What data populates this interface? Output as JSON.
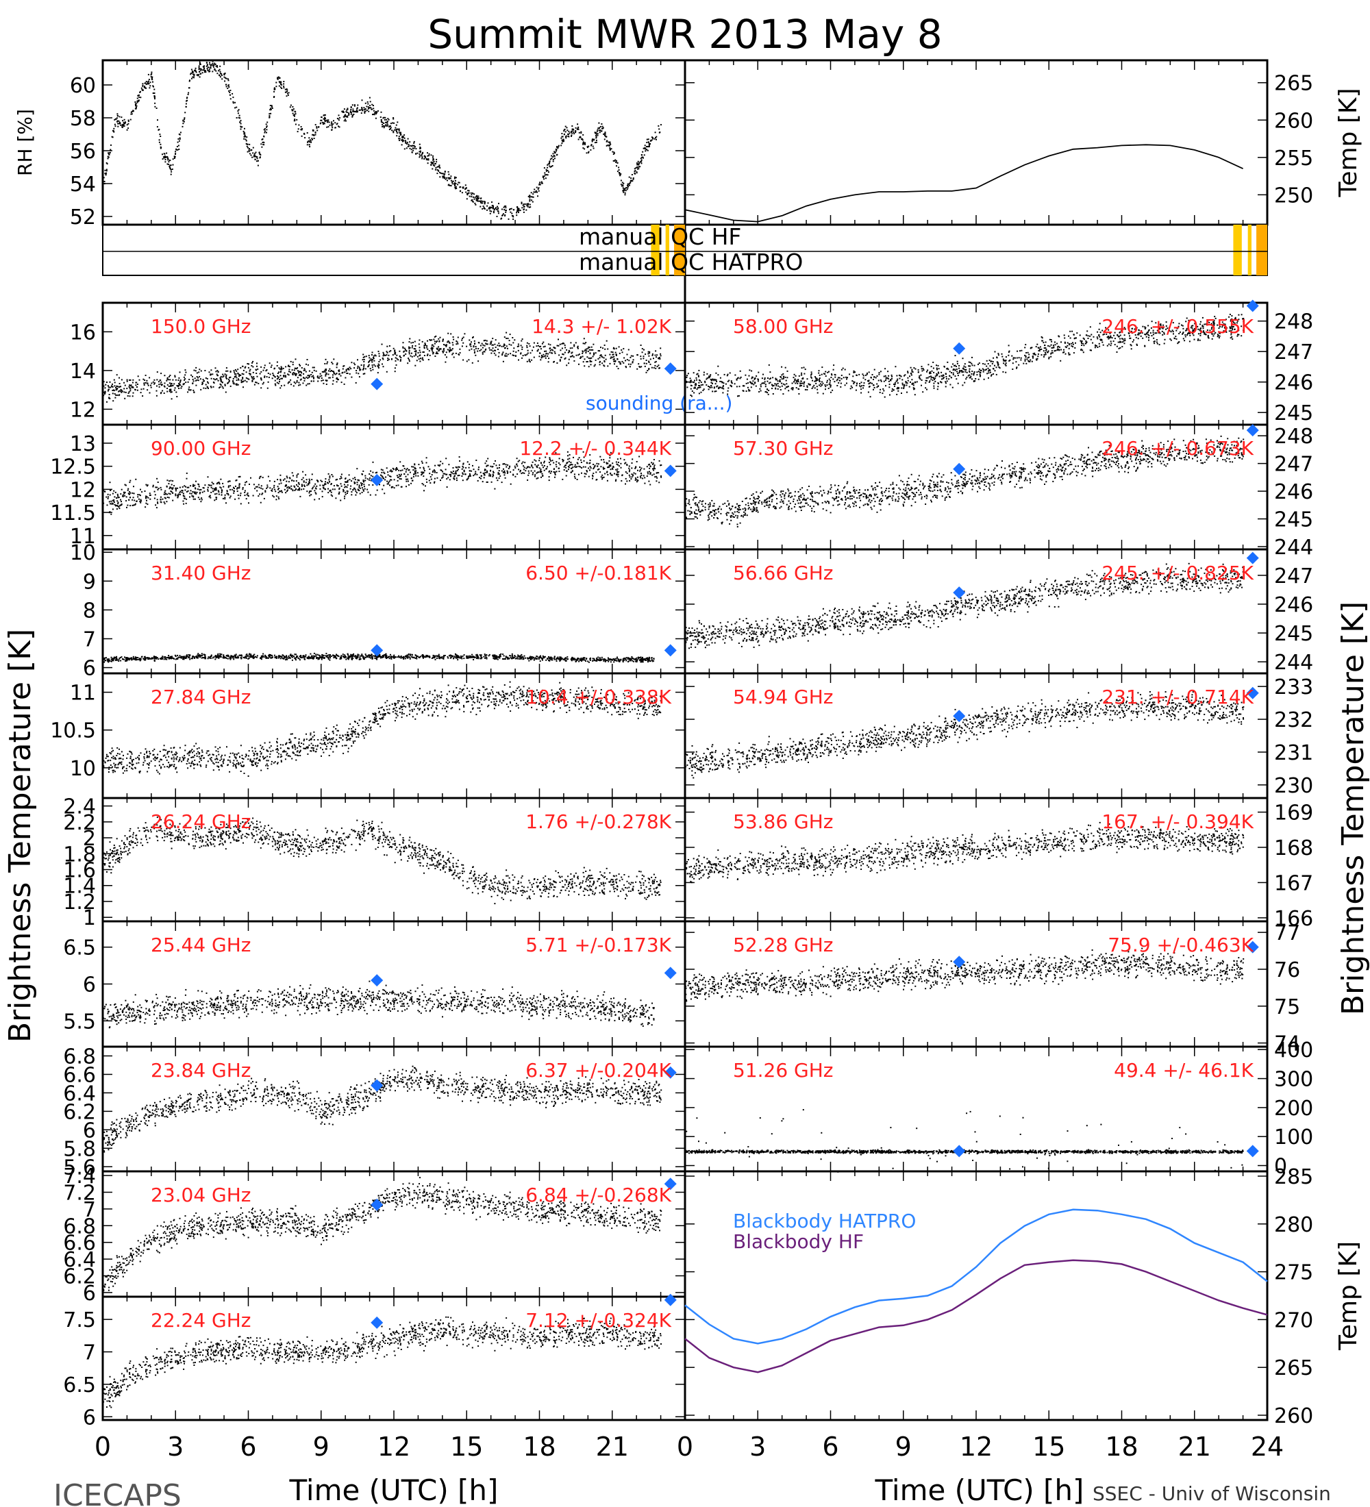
{
  "title": "Summit MWR 2013 May  8",
  "footer": {
    "left": "ICECAPS",
    "right": "SSEC - Univ of Wisconsin"
  },
  "xaxis": {
    "label": "Time (UTC) [h]",
    "ticks": [
      0,
      3,
      6,
      9,
      12,
      15,
      18,
      21,
      24
    ],
    "range": [
      0,
      24
    ]
  },
  "side_labels": {
    "left": "Brightness Temperature [K]",
    "right": "Brightness Temperature [K]"
  },
  "colors": {
    "text_red": "#ff2020",
    "sounding_blue": "#1a6fff",
    "bb_hatpro": "#2f86ff",
    "bb_hf": "#6a1f7a",
    "qc_orange": "#ffaa00",
    "qc_yellow": "#ffcc00"
  },
  "qc": {
    "label_hf": "manual QC HF",
    "label_hatpro": "manual QC HATPRO"
  },
  "chart_data": [
    {
      "id": "rh",
      "type": "scatter",
      "ylabel": "RH [%]",
      "ylim": [
        51.5,
        61.5
      ],
      "yticks": [
        52,
        54,
        56,
        58,
        60
      ],
      "x": [
        0,
        0.5,
        1,
        1.5,
        2,
        2.4,
        2.8,
        3.2,
        3.6,
        4,
        4.5,
        5,
        5.5,
        6,
        6.4,
        6.8,
        7.2,
        7.6,
        8,
        8.5,
        9,
        9.5,
        10,
        10.5,
        11,
        11.5,
        12,
        12.5,
        13,
        13.5,
        14,
        14.5,
        15,
        15.5,
        16,
        16.5,
        17,
        17.5,
        18,
        18.5,
        19,
        19.5,
        20,
        20.5,
        21,
        21.5,
        22,
        22.5,
        23
      ],
      "values": [
        54,
        58,
        57.5,
        59.5,
        60.5,
        56,
        55,
        57,
        60.5,
        61,
        61.2,
        60.5,
        58.5,
        56,
        55.5,
        58,
        60.5,
        59.5,
        57.5,
        56.5,
        58,
        57.5,
        58.3,
        58.5,
        58.8,
        57.8,
        57.5,
        56.5,
        56,
        55.5,
        54.5,
        54,
        53.5,
        53,
        52.5,
        52.3,
        52.3,
        52.8,
        54,
        55.5,
        57,
        57.5,
        56,
        57.5,
        56,
        53.5,
        55,
        56.5,
        57.5
      ]
    },
    {
      "id": "tair",
      "type": "line",
      "ylabel": "Temp [K]",
      "ylim": [
        246,
        268
      ],
      "yticks": [
        250,
        255,
        260,
        265
      ],
      "x": [
        0,
        1,
        2,
        3,
        4,
        5,
        6,
        7,
        8,
        9,
        10,
        11,
        12,
        13,
        14,
        15,
        16,
        17,
        18,
        19,
        20,
        21,
        22,
        23
      ],
      "values": [
        248,
        247.3,
        246.6,
        246.4,
        247.2,
        248.5,
        249.4,
        250,
        250.4,
        250.4,
        250.5,
        250.5,
        250.9,
        252.5,
        254,
        255.2,
        256.1,
        256.3,
        256.6,
        256.7,
        256.6,
        256,
        255,
        253.5
      ]
    },
    {
      "id": "150.0",
      "type": "scatter",
      "freq": "150.0 GHz",
      "stat": "14.3 +/- 1.02K",
      "ylim": [
        11.2,
        17.5
      ],
      "yticks": [
        12,
        14,
        16
      ],
      "x": [
        0,
        2,
        4,
        6,
        8,
        10,
        12,
        14,
        16,
        18,
        20,
        22,
        23
      ],
      "values": [
        13,
        13.2,
        13.5,
        13.8,
        13.8,
        14,
        14.8,
        15.3,
        15.2,
        15.1,
        14.9,
        14.6,
        14.6
      ],
      "sounding": [
        {
          "x": 11.3,
          "y": 13.3
        },
        {
          "x": 23.4,
          "y": 14.1
        }
      ],
      "annotation": "sounding (ra...)"
    },
    {
      "id": "58.00",
      "type": "scatter",
      "freq": "58.00 GHz",
      "stat": "246. +/- 0.555K",
      "ylim": [
        244.6,
        248.6
      ],
      "yticks": [
        245,
        246,
        247,
        248
      ],
      "x": [
        0,
        2,
        4,
        6,
        8,
        10,
        11,
        12,
        14,
        16,
        18,
        20,
        22,
        23
      ],
      "values": [
        246,
        246,
        246,
        246.1,
        246,
        246.2,
        246.3,
        246.4,
        246.9,
        247.3,
        247.5,
        247.7,
        247.8,
        247.9
      ],
      "sounding": [
        {
          "x": 11.3,
          "y": 247.1
        },
        {
          "x": 23.4,
          "y": 248.5
        }
      ]
    },
    {
      "id": "90.00",
      "type": "scatter",
      "freq": "90.00 GHz",
      "stat": "12.2 +/- 0.344K",
      "ylim": [
        10.7,
        13.4
      ],
      "yticks": [
        11.0,
        11.5,
        12.0,
        12.5,
        13.0
      ],
      "x": [
        0,
        2,
        4,
        6,
        8,
        10,
        12,
        14,
        16,
        18,
        20,
        22,
        23
      ],
      "values": [
        11.8,
        11.9,
        12,
        12,
        12.1,
        12.1,
        12.3,
        12.4,
        12.4,
        12.5,
        12.5,
        12.4,
        12.4
      ],
      "sounding": [
        {
          "x": 11.3,
          "y": 12.2
        },
        {
          "x": 23.4,
          "y": 12.4
        }
      ]
    },
    {
      "id": "57.30",
      "type": "scatter",
      "freq": "57.30 GHz",
      "stat": "246. +/- 0.673K",
      "ylim": [
        243.9,
        248.4
      ],
      "yticks": [
        244,
        245,
        246,
        247,
        248
      ],
      "x": [
        0,
        2,
        3,
        4,
        6,
        8,
        10,
        12,
        14,
        16,
        18,
        20,
        22,
        23
      ],
      "values": [
        245.5,
        245.2,
        245.6,
        245.7,
        245.8,
        245.9,
        246.1,
        246.4,
        246.7,
        247,
        247.2,
        247.4,
        247.5,
        247.5
      ],
      "sounding": [
        {
          "x": 11.3,
          "y": 246.8
        },
        {
          "x": 23.4,
          "y": 248.2
        }
      ]
    },
    {
      "id": "31.40",
      "type": "scatter",
      "freq": "31.40 GHz",
      "stat": "6.50 +/-0.181K",
      "ylim": [
        5.8,
        10.1
      ],
      "yticks": [
        6,
        7,
        8,
        9,
        10
      ],
      "x": [
        0,
        4,
        8,
        12,
        16,
        20,
        22.7
      ],
      "values": [
        6.3,
        6.4,
        6.4,
        6.4,
        6.4,
        6.3,
        6.3
      ],
      "sounding": [
        {
          "x": 11.3,
          "y": 6.6
        },
        {
          "x": 23.4,
          "y": 6.6
        }
      ]
    },
    {
      "id": "56.66",
      "type": "scatter",
      "freq": "56.66 GHz",
      "stat": "245. +/- 0.825K",
      "ylim": [
        243.6,
        247.9
      ],
      "yticks": [
        244,
        245,
        246,
        247
      ],
      "x": [
        0,
        2,
        4,
        6,
        8,
        10,
        12,
        14,
        16,
        18,
        20,
        22,
        23
      ],
      "values": [
        244.9,
        245,
        245.1,
        245.4,
        245.5,
        245.7,
        246,
        246.3,
        246.6,
        246.8,
        246.9,
        246.9,
        246.9
      ],
      "sounding": [
        {
          "x": 11.3,
          "y": 246.4
        },
        {
          "x": 23.4,
          "y": 247.6
        }
      ]
    },
    {
      "id": "27.84",
      "type": "scatter",
      "freq": "27.84 GHz",
      "stat": "10.4 +/-0.338K",
      "ylim": [
        9.6,
        11.25
      ],
      "yticks": [
        10.0,
        10.5,
        11.0
      ],
      "x": [
        0,
        2,
        4,
        6,
        8,
        10,
        11,
        12,
        13,
        14,
        16,
        18,
        20,
        22,
        23
      ],
      "values": [
        10.1,
        10.1,
        10.15,
        10.1,
        10.3,
        10.4,
        10.6,
        10.8,
        10.85,
        10.9,
        10.95,
        10.95,
        10.9,
        10.85,
        10.8
      ],
      "sounding": []
    },
    {
      "id": "54.94",
      "type": "scatter",
      "freq": "54.94 GHz",
      "stat": "231. +/- 0.714K",
      "ylim": [
        229.6,
        233.4
      ],
      "yticks": [
        230,
        231,
        232,
        233
      ],
      "x": [
        0,
        2,
        4,
        6,
        8,
        10,
        12,
        14,
        16,
        18,
        20,
        22,
        23
      ],
      "values": [
        230.7,
        230.8,
        231,
        231.2,
        231.4,
        231.6,
        231.9,
        232.1,
        232.3,
        232.4,
        232.4,
        232.3,
        232.2
      ],
      "sounding": [
        {
          "x": 11.3,
          "y": 232.1
        },
        {
          "x": 23.4,
          "y": 232.8
        }
      ]
    },
    {
      "id": "26.24",
      "type": "scatter",
      "freq": "26.24 GHz",
      "stat": "1.76 +/-0.278K",
      "ylim": [
        0.95,
        2.5
      ],
      "yticks": [
        1.0,
        1.2,
        1.4,
        1.6,
        1.8,
        2.0,
        2.2,
        2.4
      ],
      "x": [
        0,
        1,
        2,
        4,
        6,
        8,
        10,
        11,
        12,
        13,
        14,
        15,
        16,
        18,
        20,
        22,
        23
      ],
      "values": [
        1.7,
        1.9,
        2.1,
        2.0,
        2.1,
        1.9,
        2.0,
        2.1,
        1.9,
        1.8,
        1.7,
        1.55,
        1.4,
        1.4,
        1.45,
        1.4,
        1.4
      ],
      "sounding": []
    },
    {
      "id": "53.86",
      "type": "scatter",
      "freq": "53.86 GHz",
      "stat": "167. +/- 0.394K",
      "ylim": [
        165.9,
        169.4
      ],
      "yticks": [
        166,
        167,
        168,
        169
      ],
      "x": [
        0,
        2,
        4,
        6,
        8,
        10,
        12,
        14,
        16,
        18,
        20,
        22,
        23
      ],
      "values": [
        167.4,
        167.5,
        167.6,
        167.6,
        167.8,
        167.9,
        168,
        168.1,
        168.2,
        168.3,
        168.3,
        168.2,
        168.2
      ],
      "sounding": []
    },
    {
      "id": "25.44",
      "type": "scatter",
      "freq": "25.44 GHz",
      "stat": "5.71 +/-0.173K",
      "ylim": [
        5.15,
        6.85
      ],
      "yticks": [
        5.5,
        6.0,
        6.5
      ],
      "x": [
        0,
        4,
        8,
        12,
        16,
        20,
        22.7
      ],
      "values": [
        5.6,
        5.7,
        5.8,
        5.8,
        5.75,
        5.7,
        5.6
      ],
      "sounding": [
        {
          "x": 11.3,
          "y": 6.05
        },
        {
          "x": 23.4,
          "y": 6.15
        }
      ]
    },
    {
      "id": "52.28",
      "type": "scatter",
      "freq": "52.28 GHz",
      "stat": "75.9 +/-0.463K",
      "ylim": [
        73.9,
        77.3
      ],
      "yticks": [
        74,
        75,
        76,
        77
      ],
      "x": [
        0,
        2,
        4,
        6,
        8,
        10,
        12,
        14,
        16,
        18,
        20,
        22,
        23
      ],
      "values": [
        75.5,
        75.6,
        75.6,
        75.7,
        75.8,
        75.9,
        75.9,
        76,
        76.1,
        76.2,
        76.1,
        76,
        76
      ],
      "sounding": [
        {
          "x": 11.3,
          "y": 76.2
        },
        {
          "x": 23.4,
          "y": 76.6
        }
      ]
    },
    {
      "id": "23.84",
      "type": "scatter",
      "freq": "23.84 GHz",
      "stat": "6.37 +/-0.204K",
      "ylim": [
        5.55,
        6.9
      ],
      "yticks": [
        5.6,
        5.8,
        6.0,
        6.2,
        6.4,
        6.6,
        6.8
      ],
      "x": [
        0,
        2,
        4,
        6,
        8,
        9,
        10,
        11,
        12,
        13,
        14,
        16,
        18,
        20,
        22,
        23
      ],
      "values": [
        5.9,
        6.2,
        6.3,
        6.4,
        6.4,
        6.2,
        6.3,
        6.4,
        6.55,
        6.55,
        6.5,
        6.45,
        6.4,
        6.45,
        6.4,
        6.4
      ],
      "sounding": [
        {
          "x": 11.3,
          "y": 6.48
        },
        {
          "x": 23.4,
          "y": 6.62
        }
      ]
    },
    {
      "id": "51.26",
      "type": "scatter",
      "freq": "51.26 GHz",
      "stat": "49.4 +/- 46.1K",
      "ylim": [
        -20,
        410
      ],
      "yticks": [
        0,
        100,
        200,
        300,
        400
      ],
      "x": [
        0,
        4,
        8,
        12,
        16,
        20,
        23
      ],
      "values": [
        50,
        50,
        50,
        50,
        50,
        50,
        50
      ],
      "sounding": [
        {
          "x": 11.3,
          "y": 50
        },
        {
          "x": 23.4,
          "y": 50
        }
      ]
    },
    {
      "id": "23.04",
      "type": "scatter",
      "freq": "23.04 GHz",
      "stat": "6.84 +/-0.268K",
      "ylim": [
        5.95,
        7.45
      ],
      "yticks": [
        6.0,
        6.2,
        6.4,
        6.6,
        6.8,
        7.0,
        7.2,
        7.4
      ],
      "x": [
        0,
        1,
        2,
        3,
        4,
        6,
        8,
        9,
        10,
        11,
        12,
        13,
        14,
        16,
        18,
        20,
        22,
        23
      ],
      "values": [
        6.1,
        6.4,
        6.6,
        6.75,
        6.8,
        6.85,
        6.85,
        6.75,
        6.9,
        7.0,
        7.15,
        7.2,
        7.15,
        7.05,
        7.0,
        6.95,
        6.9,
        6.85
      ],
      "sounding": [
        {
          "x": 11.3,
          "y": 7.05
        },
        {
          "x": 23.4,
          "y": 7.3
        }
      ]
    },
    {
      "id": "bb",
      "type": "line",
      "ylabel": "Temp [K]",
      "ylim": [
        259.5,
        285.5
      ],
      "yticks": [
        260,
        265,
        270,
        275,
        280,
        285
      ],
      "x": [
        0,
        1,
        2,
        3,
        4,
        5,
        6,
        7,
        8,
        9,
        10,
        11,
        12,
        13,
        14,
        15,
        16,
        17,
        18,
        19,
        20,
        21,
        22,
        23,
        24
      ],
      "series": [
        {
          "name": "Blackbody HATPRO",
          "values": [
            271.5,
            269.5,
            268,
            267.5,
            268,
            269,
            270.3,
            271.3,
            272,
            272.2,
            272.5,
            273.5,
            275.5,
            278,
            279.8,
            281,
            281.5,
            281.4,
            281,
            280.5,
            279.5,
            278,
            277,
            276,
            274
          ]
        },
        {
          "name": "Blackbody HF",
          "values": [
            268,
            266,
            265,
            264.5,
            265.2,
            266.5,
            267.8,
            268.5,
            269.2,
            269.4,
            270,
            271,
            272.6,
            274.3,
            275.7,
            276,
            276.2,
            276.1,
            275.8,
            275,
            274,
            273,
            272,
            271.2,
            270.5
          ]
        }
      ]
    },
    {
      "id": "22.24",
      "type": "scatter",
      "freq": "22.24 GHz",
      "stat": "7.12 +/-0.324K",
      "ylim": [
        5.95,
        7.85
      ],
      "yticks": [
        6.0,
        6.5,
        7.0,
        7.5
      ],
      "x": [
        0,
        1,
        2,
        4,
        6,
        8,
        10,
        12,
        14,
        16,
        18,
        20,
        22,
        23
      ],
      "values": [
        6.3,
        6.6,
        6.8,
        7.0,
        7.05,
        7.0,
        7.05,
        7.2,
        7.35,
        7.3,
        7.25,
        7.3,
        7.25,
        7.2
      ],
      "sounding": [
        {
          "x": 11.3,
          "y": 7.45
        },
        {
          "x": 23.4,
          "y": 7.8
        }
      ]
    }
  ]
}
